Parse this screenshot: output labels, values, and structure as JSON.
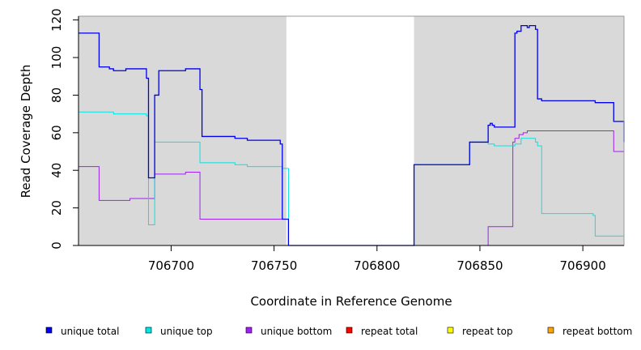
{
  "chart_data": {
    "type": "line",
    "xlabel": "Coordinate in Reference Genome",
    "ylabel": "Read Coverage Depth",
    "xlim": [
      706655,
      706920
    ],
    "ylim": [
      0,
      122
    ],
    "x_ticks": [
      706700,
      706750,
      706800,
      706850,
      706900
    ],
    "y_ticks": [
      0,
      20,
      40,
      60,
      80,
      100,
      120
    ],
    "shaded_regions": [
      [
        706655,
        706756
      ],
      [
        706818,
        706920
      ]
    ],
    "shade_color": "#d9d9d9",
    "legend_position": "bottom",
    "series": [
      {
        "name": "unique total",
        "color": "#0000ee",
        "x": [
          706655,
          706665,
          706670,
          706672,
          706678,
          706688,
          706689,
          706692,
          706694,
          706707,
          706714,
          706715,
          706731,
          706737,
          706753,
          706754,
          706757,
          706818,
          706845,
          706854,
          706855,
          706856,
          706857,
          706867,
          706868,
          706870,
          706873,
          706874,
          706877,
          706878,
          706880,
          706905,
          706906,
          706915,
          706920
        ],
        "y": [
          113,
          95,
          94,
          93,
          94,
          89,
          36,
          80,
          93,
          94,
          83,
          58,
          57,
          56,
          54,
          14,
          0,
          43,
          55,
          64,
          65,
          64,
          63,
          113,
          114,
          117,
          116,
          117,
          115,
          78,
          77,
          77,
          76,
          66,
          55
        ]
      },
      {
        "name": "unique top",
        "color": "#00e5e5",
        "x": [
          706655,
          706672,
          706688,
          706689,
          706692,
          706714,
          706731,
          706737,
          706754,
          706757,
          706818,
          706845,
          706854,
          706857,
          706867,
          706870,
          706877,
          706878,
          706880,
          706905,
          706906,
          706920
        ],
        "y": [
          71,
          70,
          69,
          11,
          55,
          44,
          43,
          42,
          41,
          0,
          43,
          55,
          54,
          53,
          54,
          57,
          55,
          53,
          17,
          16,
          5,
          5
        ],
        "end_y": 5
      },
      {
        "name": "unique bottom",
        "color": "#a020f0",
        "x": [
          706655,
          706665,
          706680,
          706692,
          706707,
          706714,
          706754,
          706757,
          706818,
          706853,
          706854,
          706866,
          706867,
          706869,
          706871,
          706873,
          706905,
          706915,
          706920
        ],
        "y": [
          42,
          24,
          25,
          38,
          39,
          14,
          14,
          0,
          0,
          0,
          10,
          55,
          57,
          59,
          60,
          61,
          61,
          50,
          50
        ]
      },
      {
        "name": "repeat total",
        "color": "#ff0000",
        "x": [
          706655,
          706920
        ],
        "y": [
          0,
          0
        ]
      },
      {
        "name": "repeat top",
        "color": "#ffff00",
        "x": [
          706655,
          706920
        ],
        "y": [
          0,
          0
        ]
      },
      {
        "name": "repeat bottom",
        "color": "#ffa500",
        "x": [
          706655,
          706920
        ],
        "y": [
          0,
          0
        ]
      }
    ]
  }
}
